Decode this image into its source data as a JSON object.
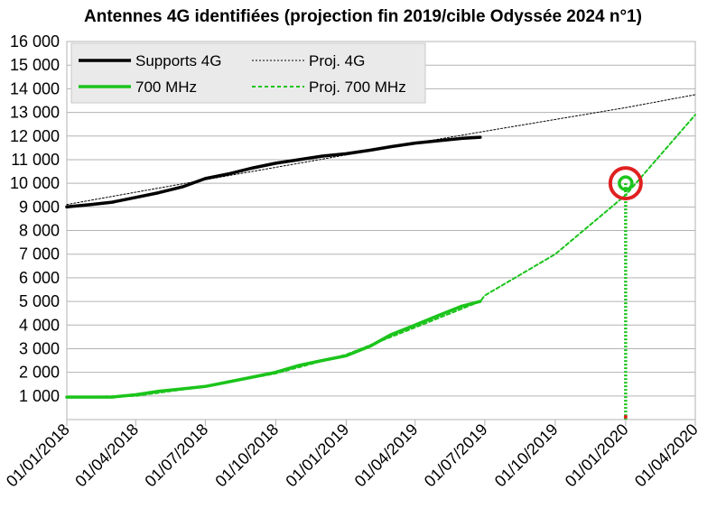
{
  "chart_data": {
    "type": "line",
    "title": "Antennes 4G identifiées (projection fin 2019/cible Odyssée 2024 n°1)",
    "xlabel": "",
    "ylabel": "",
    "ylim": [
      0,
      16000
    ],
    "xlim": [
      "2018-01-01",
      "2020-04-01"
    ],
    "y_ticks": [
      1000,
      2000,
      3000,
      4000,
      5000,
      6000,
      7000,
      8000,
      9000,
      10000,
      11000,
      12000,
      13000,
      14000,
      15000,
      16000
    ],
    "y_tick_labels": [
      "1 000",
      "2 000",
      "3 000",
      "4 000",
      "5 000",
      "6 000",
      "7 000",
      "8 000",
      "9 000",
      "10 000",
      "11 000",
      "12 000",
      "13 000",
      "14 000",
      "15 000",
      "16 000"
    ],
    "x_ticks": [
      "2018-01-01",
      "2018-04-01",
      "2018-07-01",
      "2018-10-01",
      "2019-01-01",
      "2019-04-01",
      "2019-07-01",
      "2019-10-01",
      "2020-01-01",
      "2020-04-01"
    ],
    "x_tick_labels": [
      "01/01/2018",
      "01/04/2018",
      "01/07/2018",
      "01/10/2018",
      "01/01/2019",
      "01/04/2019",
      "01/07/2019",
      "01/10/2019",
      "01/01/2020",
      "01/04/2020"
    ],
    "grid": "horizontal",
    "legend_position": "top-left",
    "series": [
      {
        "name": "Supports 4G",
        "style": "solid",
        "color": "#000000",
        "x": [
          "2018-01-01",
          "2018-02-01",
          "2018-03-01",
          "2018-04-01",
          "2018-05-01",
          "2018-06-01",
          "2018-07-01",
          "2018-08-01",
          "2018-09-01",
          "2018-10-01",
          "2018-11-01",
          "2018-12-01",
          "2019-01-01",
          "2019-02-01",
          "2019-03-01",
          "2019-04-01",
          "2019-05-01",
          "2019-06-01",
          "2019-06-25"
        ],
        "values": [
          9000,
          9100,
          9200,
          9400,
          9600,
          9850,
          10200,
          10400,
          10650,
          10850,
          11000,
          11150,
          11250,
          11400,
          11550,
          11700,
          11800,
          11900,
          11950
        ]
      },
      {
        "name": "Proj. 4G",
        "style": "dotted",
        "color": "#000000",
        "x": [
          "2018-01-01",
          "2018-07-01",
          "2019-01-01",
          "2019-07-01",
          "2020-01-01",
          "2020-04-01"
        ],
        "values": [
          9100,
          10150,
          11200,
          12200,
          13200,
          13750
        ]
      },
      {
        "name": "700 MHz",
        "style": "solid",
        "color": "#1bc41b",
        "x": [
          "2018-01-01",
          "2018-02-01",
          "2018-03-01",
          "2018-04-01",
          "2018-05-01",
          "2018-06-01",
          "2018-07-01",
          "2018-08-01",
          "2018-09-01",
          "2018-10-01",
          "2018-11-01",
          "2018-12-01",
          "2019-01-01",
          "2019-02-01",
          "2019-03-01",
          "2019-04-01",
          "2019-05-01",
          "2019-06-01",
          "2019-06-25"
        ],
        "values": [
          950,
          950,
          950,
          1050,
          1200,
          1300,
          1400,
          1600,
          1800,
          2000,
          2300,
          2500,
          2700,
          3100,
          3600,
          4000,
          4400,
          4800,
          5000
        ]
      },
      {
        "name": "Proj. 700 MHz",
        "style": "dotted",
        "color": "#1bc41b",
        "x": [
          "2018-01-01",
          "2018-04-01",
          "2018-07-01",
          "2018-10-01",
          "2019-01-01",
          "2019-04-01",
          "2019-06-25",
          "2019-07-01",
          "2019-10-01",
          "2020-01-01",
          "2020-04-01"
        ],
        "values": [
          950,
          1000,
          1400,
          1950,
          2750,
          3900,
          5000,
          5250,
          7000,
          9500,
          12900
        ]
      }
    ],
    "annotations": [
      {
        "type": "target-circle",
        "x": "2020-01-01",
        "value": 10000,
        "ring_color": "#e02020",
        "inner_color": "#1bc41b",
        "drop_line_color": "#1bc41b",
        "drop_marker_color": "#e02020"
      }
    ]
  }
}
